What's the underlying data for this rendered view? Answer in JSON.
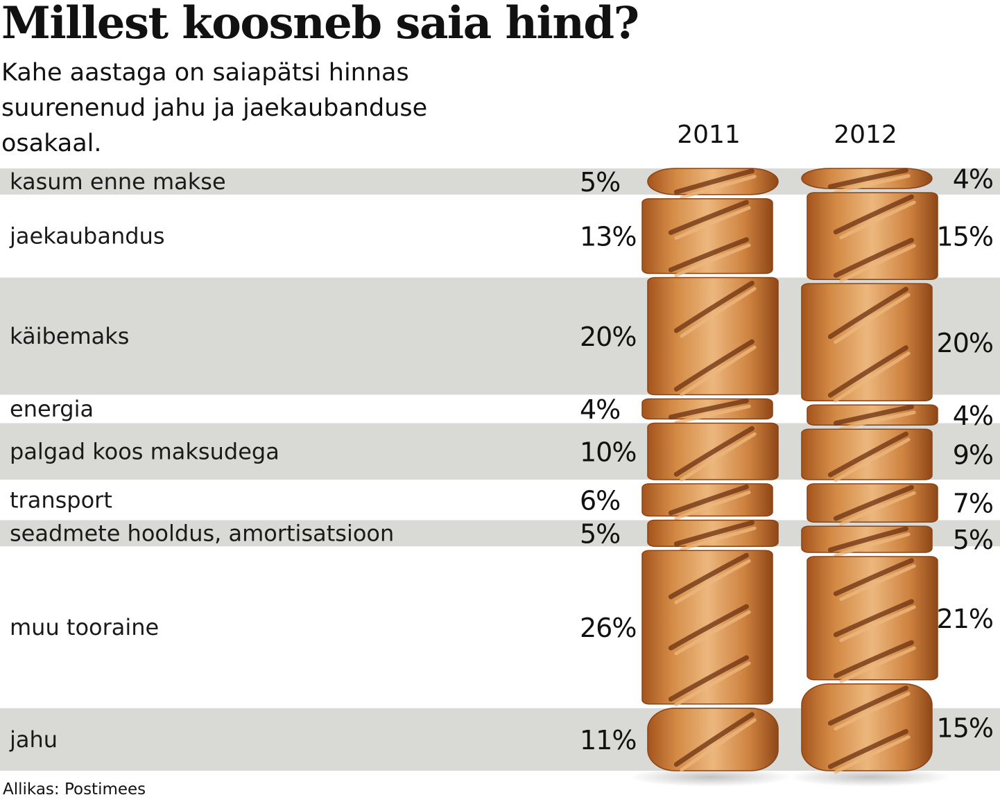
{
  "title": "Millest koosneb saia hind?",
  "subtitle": "Kahe aastaga on saiapätsi hinnas suurenenud jahu ja jaekaubanduse osakaal.",
  "source": "Allikas: Postimees",
  "colors": {
    "band_gray": "#d9d9d6",
    "crust_dark": "#a4541d",
    "crust_mid": "#d38a45",
    "crust_light": "#ecb77d",
    "score_dark": "#6b3010"
  },
  "chart_data": {
    "type": "stacked-bar",
    "title": "Millest koosneb saia hind?",
    "unit": "%",
    "years": [
      "2011",
      "2012"
    ],
    "categories": [
      "kasum enne makse",
      "jaekaubandus",
      "käibemaks",
      "energia",
      "palgad koos maksudega",
      "transport",
      "seadmete hooldus, amortisatsioon",
      "muu tooraine",
      "jahu"
    ],
    "series": [
      {
        "name": "2011",
        "values": [
          5,
          13,
          20,
          4,
          10,
          6,
          5,
          26,
          11
        ],
        "labels": [
          "5%",
          "13%",
          "20%",
          "4%",
          "10%",
          "6%",
          "5%",
          "26%",
          "11%"
        ]
      },
      {
        "name": "2012",
        "values": [
          4,
          15,
          20,
          4,
          9,
          7,
          5,
          21,
          15
        ],
        "labels": [
          "4%",
          "15%",
          "20%",
          "4%",
          "9%",
          "7%",
          "5%",
          "21%",
          "15%"
        ]
      }
    ]
  }
}
